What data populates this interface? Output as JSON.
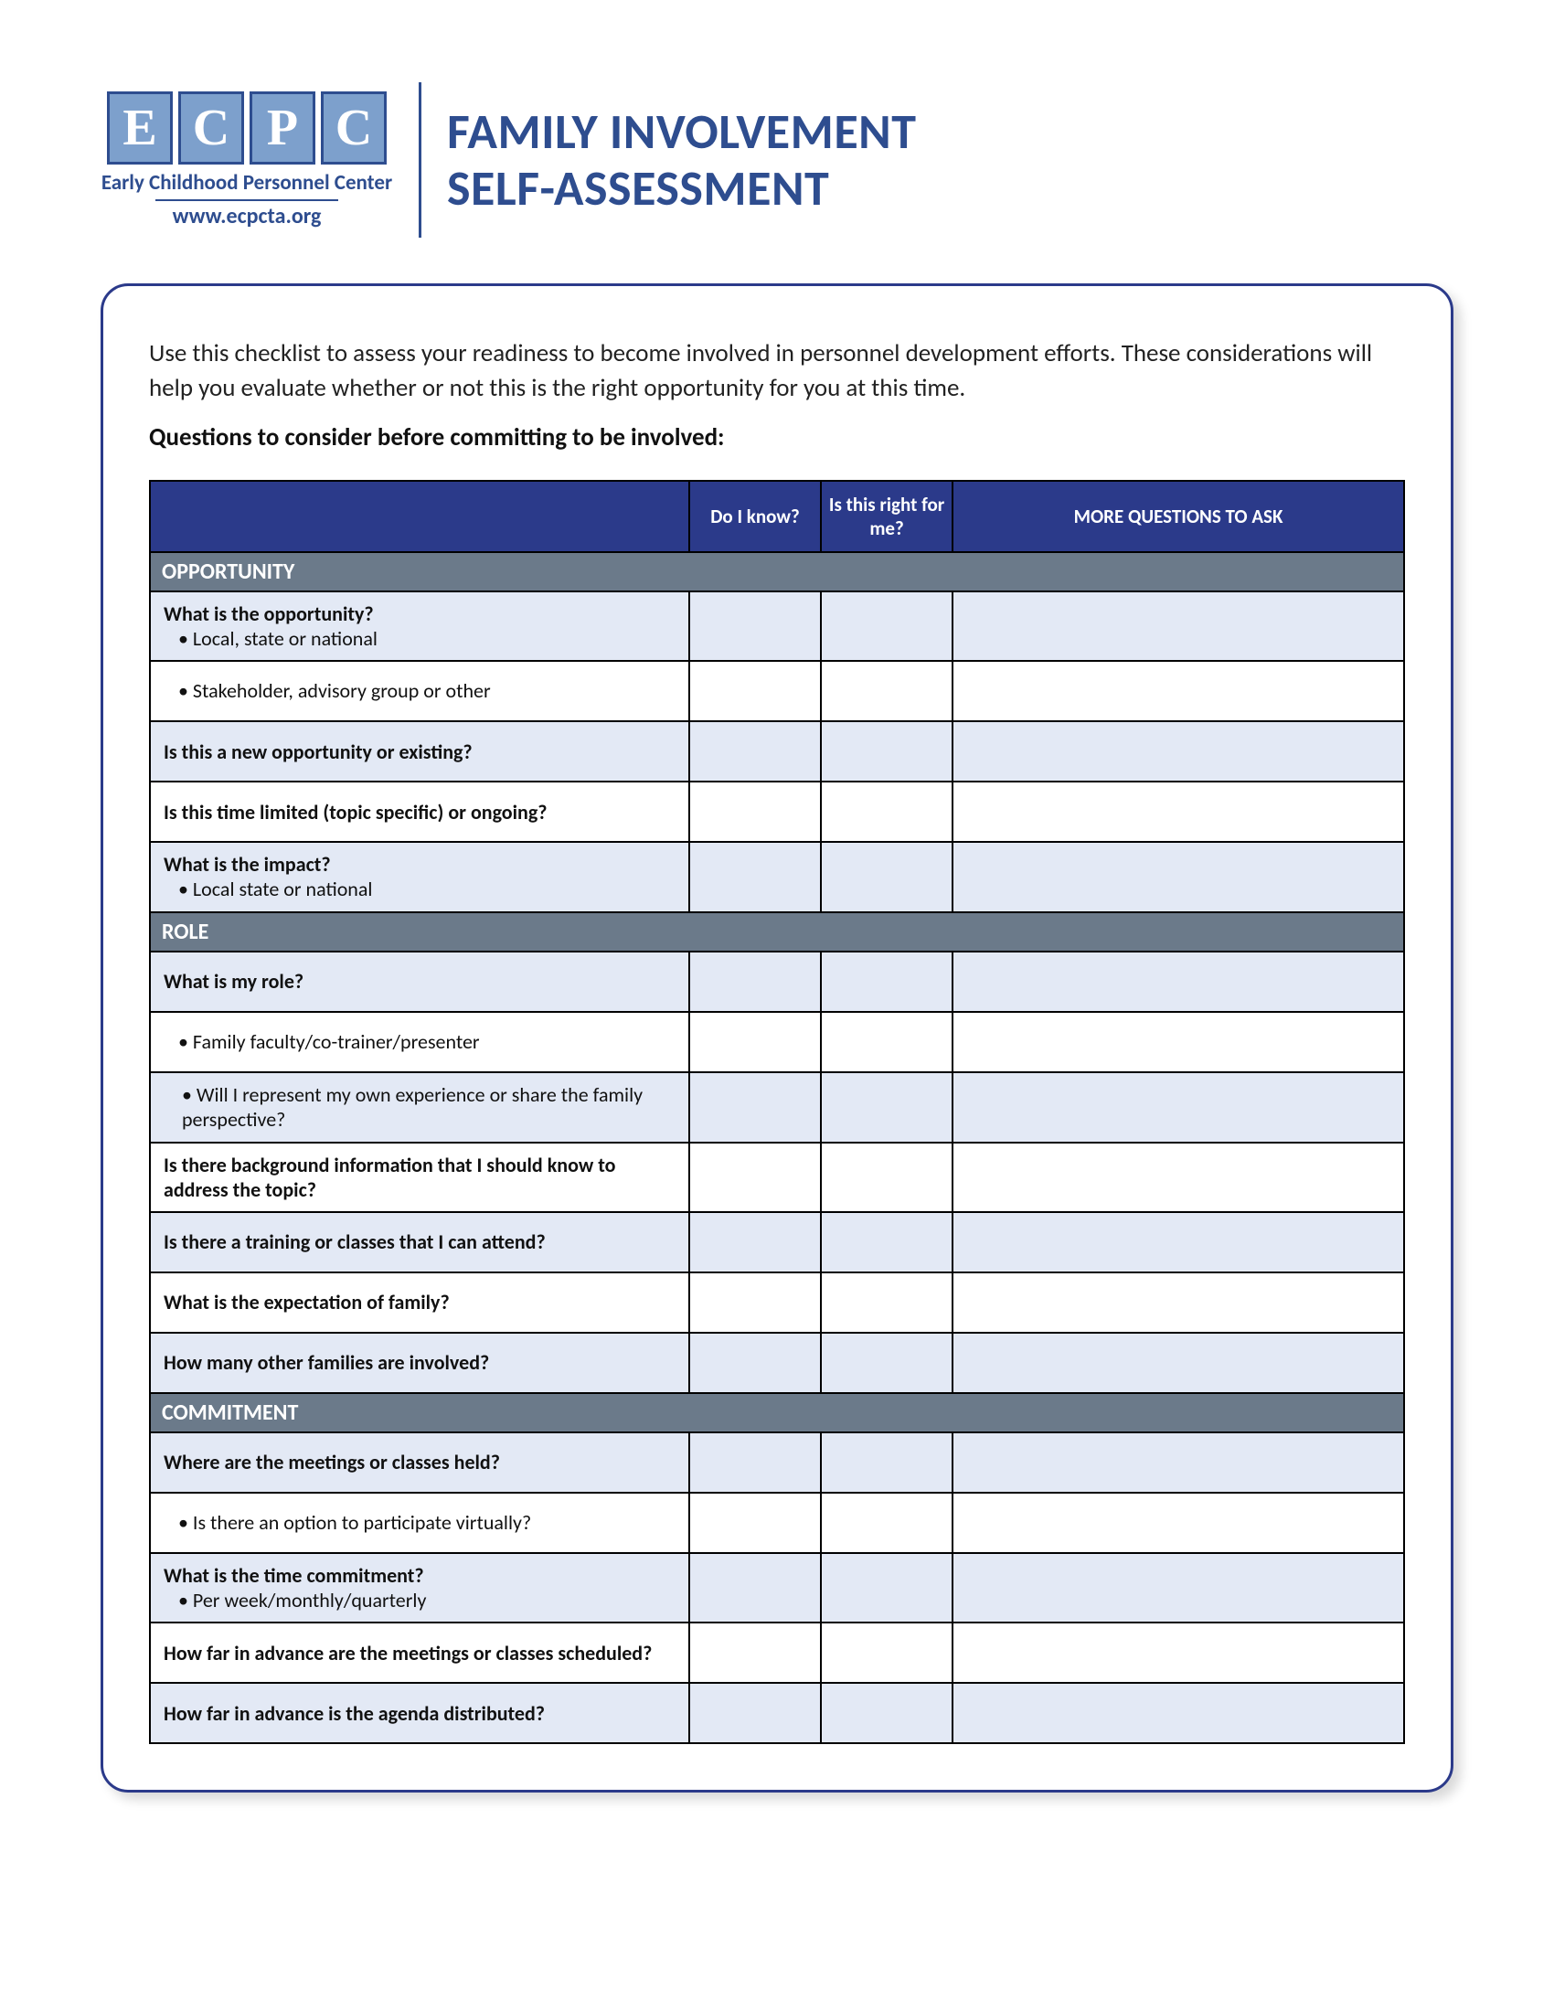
{
  "colors": {
    "brand_dark": "#2e4d8f",
    "brand_table_header": "#2b3a8a",
    "logo_tile_bg": "#7da0cc",
    "section_bg": "#6b7a8a",
    "row_shade": "#e3e9f5",
    "row_plain": "#ffffff",
    "text": "#111111",
    "white": "#ffffff",
    "border": "#000000"
  },
  "typography": {
    "title_fontsize_pt": 40,
    "body_fontsize_pt": 20,
    "cell_fontsize_pt": 16
  },
  "logo": {
    "letters": [
      "E",
      "C",
      "P",
      "C"
    ],
    "org_name": "Early Childhood Personnel Center",
    "url": "www.ecpcta.org"
  },
  "title": {
    "line1": "FAMILY INVOLVEMENT",
    "line2": "SELF-ASSESSMENT"
  },
  "intro_text": "Use this checklist to assess your readiness to become involved in personnel development efforts. These considerations will help you evaluate whether or not this is the right opportunity for you at this time.",
  "subhead": "Questions to consider before committing to be involved:",
  "table": {
    "type": "table",
    "columns": [
      {
        "key": "question",
        "label": "",
        "width_pct": 43,
        "align": "left"
      },
      {
        "key": "know",
        "label": "Do I know?",
        "width_pct": 10.5,
        "align": "center"
      },
      {
        "key": "right",
        "label": "Is this right for me?",
        "width_pct": 10.5,
        "align": "center"
      },
      {
        "key": "more",
        "label": "MORE QUESTIONS TO ASK",
        "width_pct": 36,
        "align": "center"
      }
    ],
    "sections": [
      {
        "title": "OPPORTUNITY",
        "rows": [
          {
            "bold": "What is the opportunity?",
            "bullet": "• Local, state or national",
            "shade": true
          },
          {
            "bullet": "• Stakeholder, advisory group or other",
            "shade": false
          },
          {
            "bold": "Is this a new opportunity or existing?",
            "shade": true
          },
          {
            "bold": "Is this time limited (topic specific) or ongoing?",
            "shade": false
          },
          {
            "bold": "What is the impact?",
            "bullet": "• Local state or national",
            "shade": true
          }
        ]
      },
      {
        "title": "ROLE",
        "rows": [
          {
            "bold": "What is my role?",
            "shade": true
          },
          {
            "bullet": "• Family faculty/co-trainer/presenter",
            "shade": false
          },
          {
            "bullet_indent": "• Will I represent my own experience or share the family perspective?",
            "shade": true
          },
          {
            "bold": "Is there background information that I should know to address the topic?",
            "shade": false
          },
          {
            "bold": "Is there a training or classes that I can attend?",
            "shade": true
          },
          {
            "bold": "What is the expectation of family?",
            "shade": false
          },
          {
            "bold": "How many other families are involved?",
            "shade": true
          }
        ]
      },
      {
        "title": "COMMITMENT",
        "rows": [
          {
            "bold": "Where are the meetings or classes held?",
            "shade": true
          },
          {
            "bullet": "• Is there an option to participate virtually?",
            "shade": false
          },
          {
            "bold": "What is the time commitment?",
            "bullet": "• Per week/monthly/quarterly",
            "shade": true
          },
          {
            "bold": "How far in advance are the meetings or classes scheduled?",
            "shade": false
          },
          {
            "bold": "How far in advance is the agenda distributed?",
            "shade": true
          }
        ]
      }
    ]
  }
}
